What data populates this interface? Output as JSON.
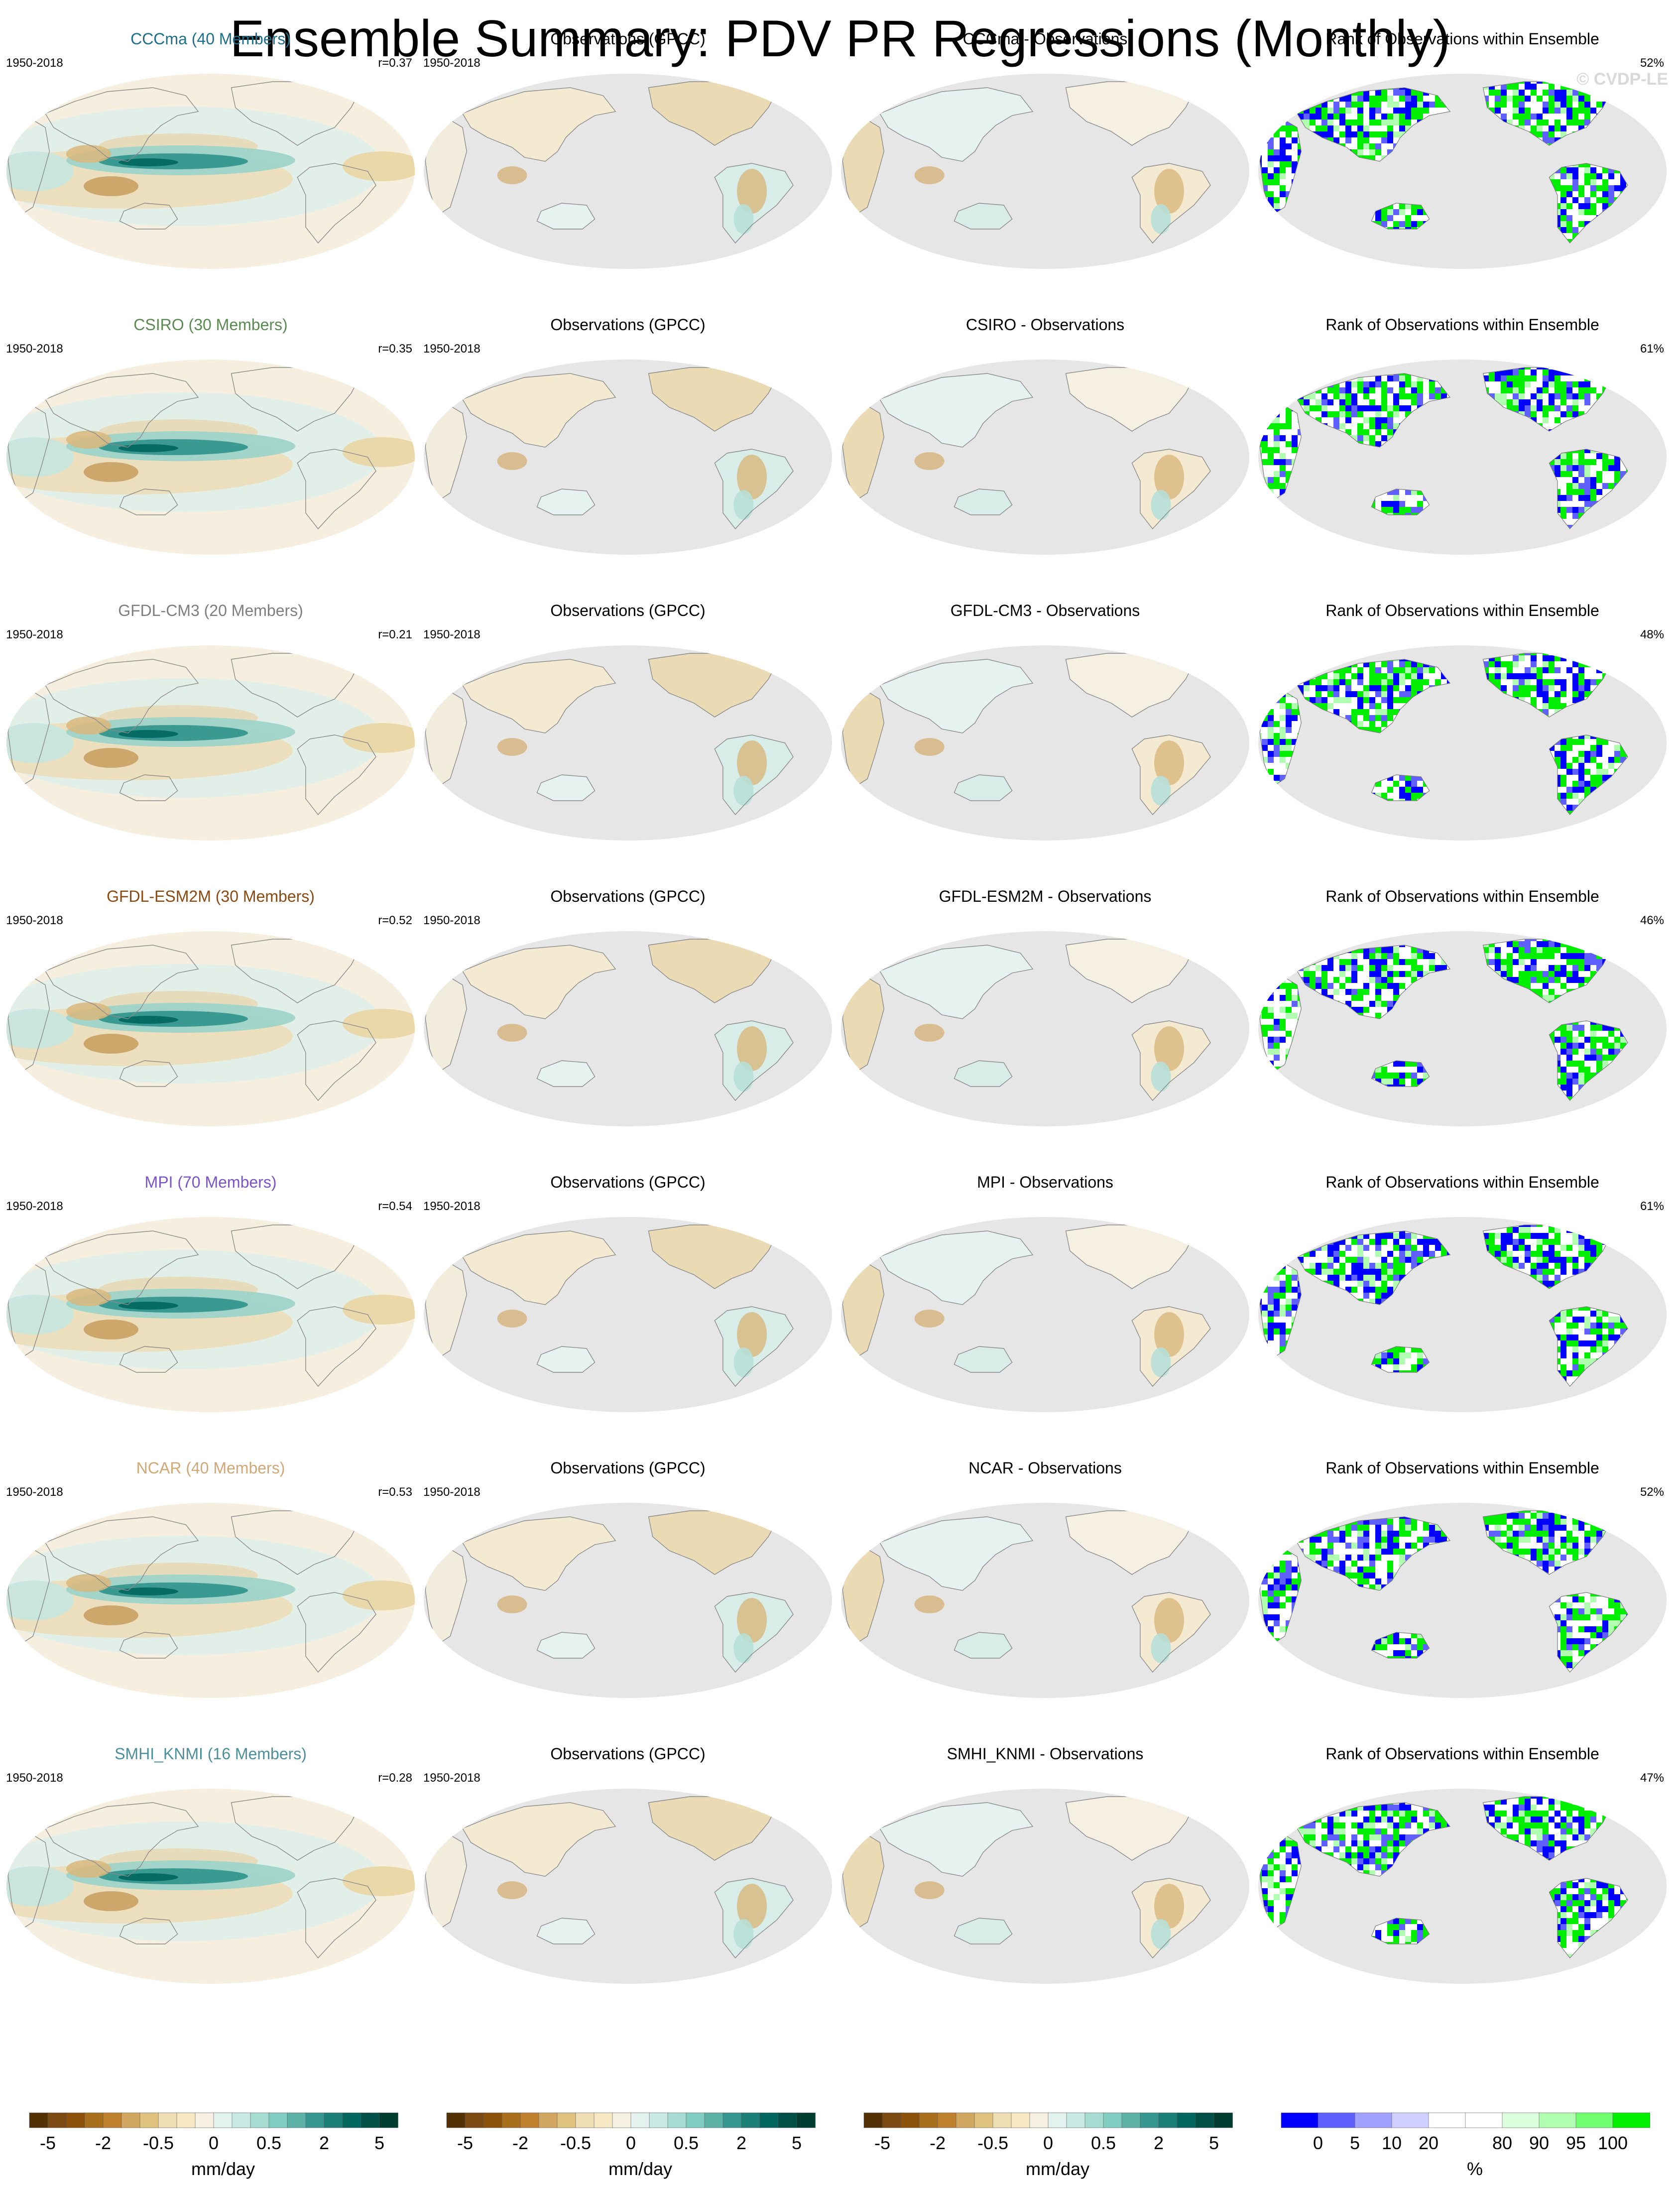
{
  "title": "Ensemble Summary: PDV PR Regressions (Monthly)",
  "copyright": "© CVDP-LE",
  "period": "1950-2018",
  "columns": {
    "observations_title": "Observations (GPCC)",
    "difference_suffix": " - Observations",
    "rank_title": "Rank of Observations within Ensemble"
  },
  "rows": [
    {
      "model": "CCCma",
      "members": "CCCma (40 Members)",
      "color": "#1f6f8b",
      "r": "r=0.37",
      "diff_title": "CCCma - Observations",
      "rank_pct": "52%"
    },
    {
      "model": "CSIRO",
      "members": "CSIRO (30 Members)",
      "color": "#5b8a52",
      "r": "r=0.35",
      "diff_title": "CSIRO - Observations",
      "rank_pct": "61%"
    },
    {
      "model": "GFDL-CM3",
      "members": "GFDL-CM3 (20 Members)",
      "color": "#7f7f7f",
      "r": "r=0.21",
      "diff_title": "GFDL-CM3 - Observations",
      "rank_pct": "48%"
    },
    {
      "model": "GFDL-ESM2M",
      "members": "GFDL-ESM2M (30 Members)",
      "color": "#8a4a14",
      "r": "r=0.52",
      "diff_title": "GFDL-ESM2M - Observations",
      "rank_pct": "46%"
    },
    {
      "model": "MPI",
      "members": "MPI (70 Members)",
      "color": "#7a55c9",
      "r": "r=0.54",
      "diff_title": "MPI - Observations",
      "rank_pct": "61%"
    },
    {
      "model": "NCAR",
      "members": "NCAR (40 Members)",
      "color": "#d2a877",
      "r": "r=0.53",
      "diff_title": "NCAR - Observations",
      "rank_pct": "52%"
    },
    {
      "model": "SMHI_KNMI",
      "members": "SMHI_KNMI (16 Members)",
      "color": "#4d8f9b",
      "r": "r=0.28",
      "diff_title": "SMHI_KNMI - Observations",
      "rank_pct": "47%"
    }
  ],
  "colorbars": {
    "regression": {
      "colors": [
        "#543005",
        "#7a4a12",
        "#8c510a",
        "#a8701d",
        "#bf812d",
        "#d1a660",
        "#dfc27d",
        "#eedeb4",
        "#f6e8c3",
        "#f5f0e2",
        "#e3f2ef",
        "#c7eae5",
        "#a7dcd3",
        "#80cdc1",
        "#5db1a6",
        "#35978f",
        "#1c7f77",
        "#01665e",
        "#014f46",
        "#003c30"
      ],
      "ticks": [
        "-5",
        "-2",
        "-0.5",
        "0",
        "0.5",
        "2",
        "5"
      ],
      "tick_boundaries": [
        1,
        4,
        7,
        10,
        13,
        16,
        19
      ],
      "label": "mm/day"
    },
    "rank": {
      "colors": [
        "#0000ff",
        "#6060ff",
        "#a0a0ff",
        "#d0d0ff",
        "#ffffff",
        "#ffffff",
        "#dcffdc",
        "#b0ffb0",
        "#70ff70",
        "#00ee00"
      ],
      "ticks": [
        "0",
        "5",
        "10",
        "20",
        "80",
        "90",
        "95",
        "100"
      ],
      "tick_boundaries": [
        1,
        2,
        3,
        4,
        6,
        7,
        8,
        9
      ],
      "label": "%"
    }
  }
}
